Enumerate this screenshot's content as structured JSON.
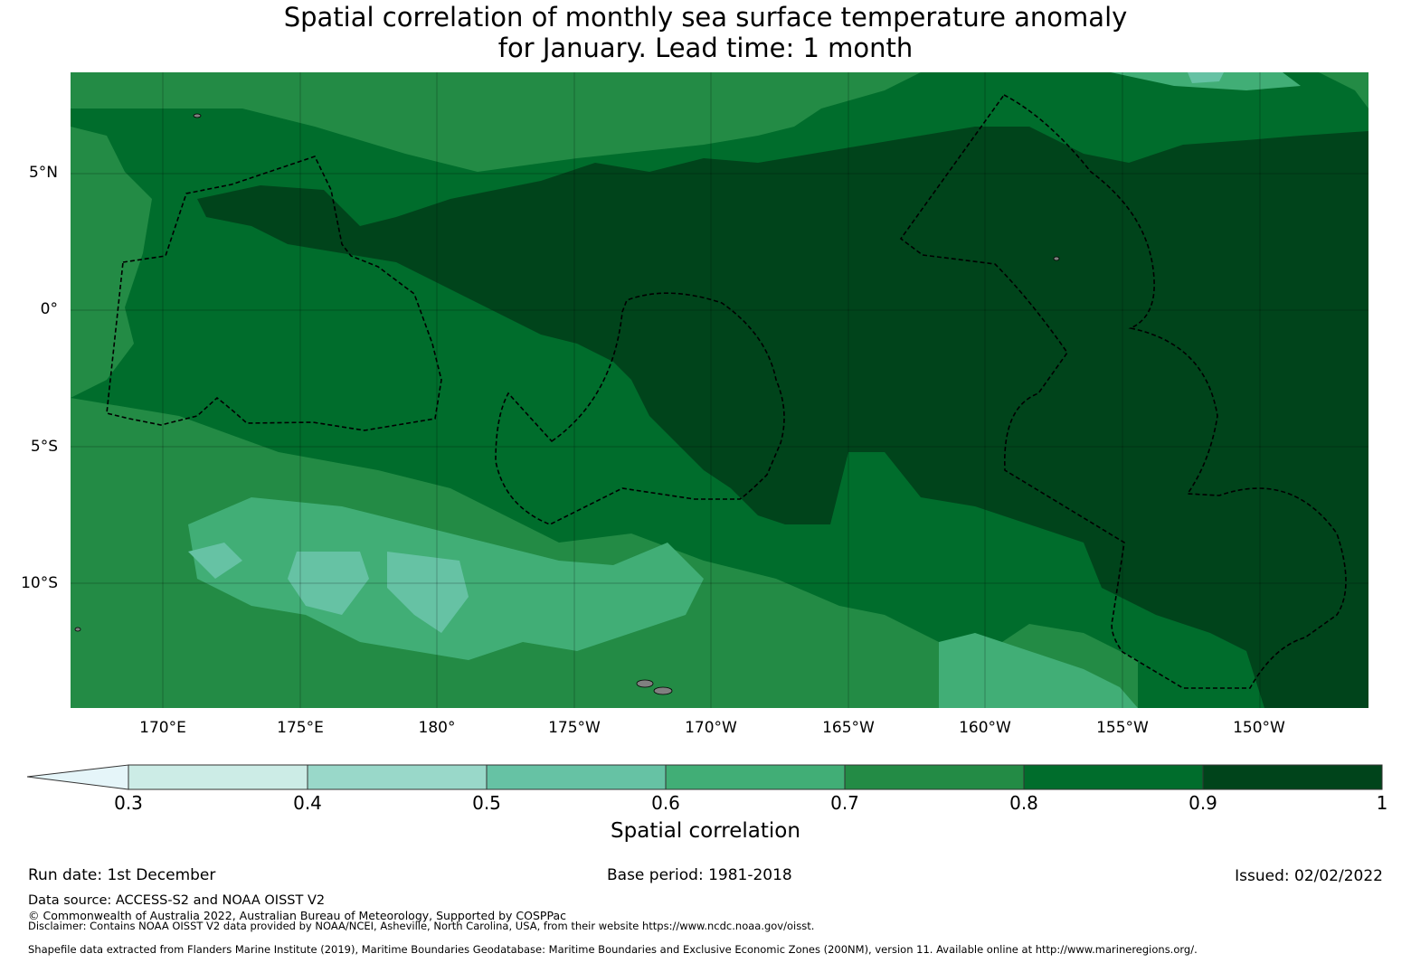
{
  "title_line1": "Spatial correlation of monthly sea surface temperature anomaly",
  "title_line2": "for January. Lead time: 1 month",
  "lat_labels": [
    "5°N",
    "0°",
    "5°S",
    "10°S"
  ],
  "lon_labels": [
    "170°E",
    "175°E",
    "180°",
    "175°W",
    "170°W",
    "165°W",
    "160°W",
    "155°W",
    "150°W"
  ],
  "colorbar": {
    "label": "Spatial correlation",
    "ticks": [
      "0.3",
      "0.4",
      "0.5",
      "0.6",
      "0.7",
      "0.8",
      "0.9",
      "1"
    ],
    "colors": [
      "#e5f5f9",
      "#ccece6",
      "#99d8c9",
      "#66c2a4",
      "#41ae76",
      "#238b45",
      "#006d2c",
      "#00441b"
    ]
  },
  "footer": {
    "run_date": "Run date: 1st December",
    "base_period": "Base period: 1981-2018",
    "issued": "Issued: 02/02/2022",
    "data_source": "Data source: ACCESS-S2 and NOAA OISST V2",
    "copyright": "© Commonwealth of Australia 2022, Australian Bureau of Meteorology, Supported by COSPPac",
    "disclaimer": "Disclaimer: Contains NOAA OISST V2 data provided by NOAA/NCEI, Asheville, North Carolina, USA, from their website https://www.ncdc.noaa.gov/oisst.",
    "shapefile": "Shapefile data extracted from Flanders Marine Institute (2019), Maritime Boundaries Geodatabase: Maritime Boundaries and Exclusive Economic Zones (200NM), version 11. Available online at http://www.marineregions.org/."
  }
}
